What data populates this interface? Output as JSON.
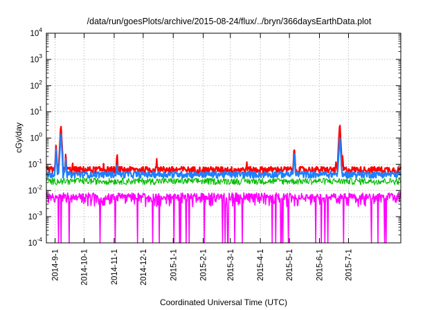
{
  "chart_data": {
    "type": "line",
    "title": "/data/run/goesPlots/archive/2015-08-24/flux/../bryn/366daysEarthData.plot",
    "xlabel": "Coordinated Universal Time (UTC)",
    "ylabel": "cGy/day",
    "yscale": "log",
    "ylim": [
      0.0001,
      10000
    ],
    "xlim": [
      "2014-08-23",
      "2015-08-24"
    ],
    "grid": true,
    "y_ticks": [
      {
        "value": 0.0001,
        "base": "10",
        "exp": "-4"
      },
      {
        "value": 0.001,
        "base": "10",
        "exp": "-3"
      },
      {
        "value": 0.01,
        "base": "10",
        "exp": "-2"
      },
      {
        "value": 0.1,
        "base": "10",
        "exp": "-1"
      },
      {
        "value": 1,
        "base": "10",
        "exp": "0"
      },
      {
        "value": 10,
        "base": "10",
        "exp": "1"
      },
      {
        "value": 100,
        "base": "10",
        "exp": "2"
      },
      {
        "value": 1000,
        "base": "10",
        "exp": "3"
      },
      {
        "value": 10000,
        "base": "10",
        "exp": "4"
      }
    ],
    "x_ticks": [
      {
        "date": "2014-09-01",
        "label": "2014-9-1"
      },
      {
        "date": "2014-10-01",
        "label": "2014-10-1"
      },
      {
        "date": "2014-11-01",
        "label": "2014-11-1"
      },
      {
        "date": "2014-12-01",
        "label": "2014-12-1"
      },
      {
        "date": "2015-01-01",
        "label": "2015-1-1"
      },
      {
        "date": "2015-02-01",
        "label": "2015-2-1"
      },
      {
        "date": "2015-03-01",
        "label": "2015-3-1"
      },
      {
        "date": "2015-04-01",
        "label": "2015-4-1"
      },
      {
        "date": "2015-05-01",
        "label": "2015-5-1"
      },
      {
        "date": "2015-06-01",
        "label": "2015-6-1"
      },
      {
        "date": "2015-07-01",
        "label": "2015-7-1"
      }
    ],
    "series": [
      {
        "color": "#ff0000",
        "base": 0.06,
        "spikes": [
          {
            "date": "2014-09-02",
            "value": 0.6
          },
          {
            "date": "2014-09-07",
            "value": 4.0
          },
          {
            "date": "2014-09-12",
            "value": 0.3
          },
          {
            "date": "2014-09-19",
            "value": 0.15
          },
          {
            "date": "2014-10-21",
            "value": 0.12
          },
          {
            "date": "2014-11-04",
            "value": 0.3
          },
          {
            "date": "2014-12-15",
            "value": 0.18
          },
          {
            "date": "2014-12-22",
            "value": 0.12
          },
          {
            "date": "2015-03-18",
            "value": 0.15
          },
          {
            "date": "2015-05-06",
            "value": 0.55
          },
          {
            "date": "2015-06-18",
            "value": 0.15
          },
          {
            "date": "2015-06-22",
            "value": 4.5
          },
          {
            "date": "2015-06-25",
            "value": 0.25
          }
        ]
      },
      {
        "color": "#1e7fff",
        "base": 0.04,
        "spikes": [
          {
            "date": "2014-09-02",
            "value": 0.45
          },
          {
            "date": "2014-09-07",
            "value": 2.0
          },
          {
            "date": "2014-09-12",
            "value": 0.2
          },
          {
            "date": "2014-11-04",
            "value": 0.15
          },
          {
            "date": "2015-05-06",
            "value": 0.35
          },
          {
            "date": "2015-06-22",
            "value": 1.5
          }
        ]
      },
      {
        "color": "#00bb00",
        "base": 0.022,
        "spikes": []
      },
      {
        "color": "#ff00ff",
        "base": 0.006,
        "dropouts_to": 0.0001
      }
    ]
  }
}
